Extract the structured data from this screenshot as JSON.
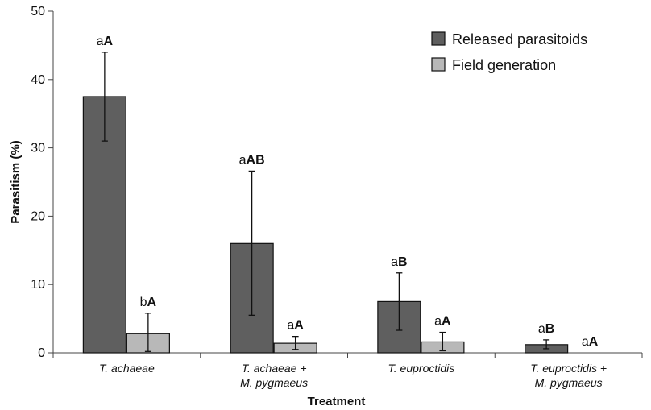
{
  "chart_data": {
    "type": "bar",
    "title": "",
    "xlabel": "Treatment",
    "ylabel": "Parasitism (%)",
    "ylim": [
      0,
      50
    ],
    "yticks": [
      0,
      10,
      20,
      30,
      40,
      50
    ],
    "grid": false,
    "legend_position": "top-right",
    "categories": [
      [
        "T. achaeae"
      ],
      [
        "T. achaeae +",
        "M. pygmaeus"
      ],
      [
        "T. euproctidis"
      ],
      [
        "T. euproctidis  +",
        "M. pygmaeus"
      ]
    ],
    "series": [
      {
        "name": "Released parasitoids",
        "color": "#5f5f5f",
        "values": [
          37.5,
          16.0,
          7.5,
          1.2
        ],
        "error_low": [
          31.0,
          5.5,
          3.3,
          0.6
        ],
        "error_high": [
          44.0,
          26.6,
          11.7,
          1.9
        ],
        "annotations": [
          [
            "a",
            "A"
          ],
          [
            "a",
            "AB"
          ],
          [
            "a",
            "B"
          ],
          [
            "a",
            "B"
          ]
        ]
      },
      {
        "name": "Field generation",
        "color": "#b8b8b8",
        "values": [
          2.8,
          1.4,
          1.6,
          0.0
        ],
        "error_low": [
          0.2,
          0.5,
          0.3,
          0.0
        ],
        "error_high": [
          5.8,
          2.4,
          3.0,
          0.0
        ],
        "annotations": [
          [
            "b",
            "A"
          ],
          [
            "a",
            "A"
          ],
          [
            "a",
            "A"
          ],
          [
            "a",
            "A"
          ]
        ]
      }
    ]
  }
}
